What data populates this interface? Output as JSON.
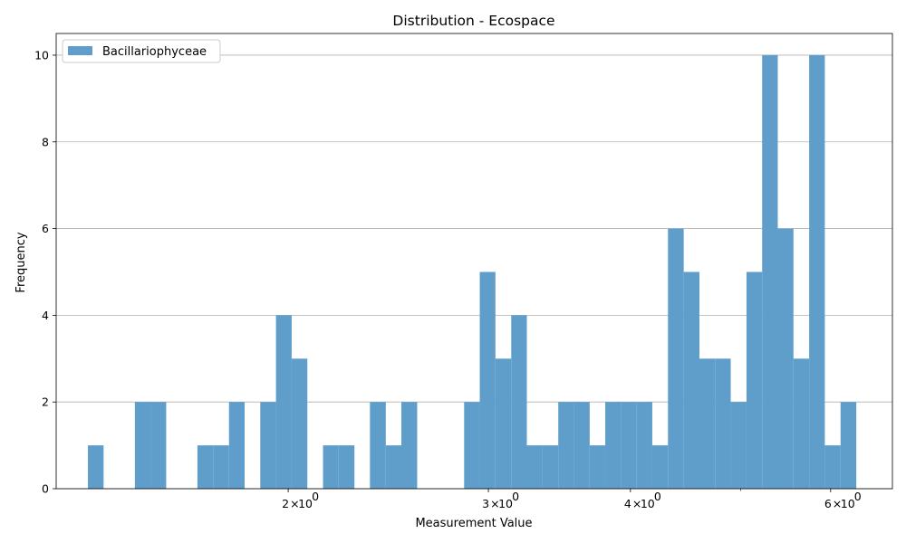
{
  "chart_data": {
    "type": "bar",
    "title": "Distribution - Ecospace",
    "xlabel": "Measurement Value",
    "ylabel": "Frequency",
    "x_scale": "log",
    "xlim": [
      1.25,
      6.8
    ],
    "ylim": [
      0,
      10.5
    ],
    "grid": "y",
    "legend_position": "upper left",
    "x_ticks": [
      {
        "value": 2,
        "base": "2",
        "exp": "0"
      },
      {
        "value": 3,
        "base": "3",
        "exp": "0"
      },
      {
        "value": 4,
        "base": "4",
        "exp": "0"
      },
      {
        "value": 6,
        "base": "6",
        "exp": "0"
      }
    ],
    "x_minor_ticks": [
      5
    ],
    "y_ticks": [
      0,
      2,
      4,
      6,
      8,
      10
    ],
    "series": [
      {
        "name": "Bacillariophyceae",
        "color": "#5f9ecb",
        "bin_edges": [
          1.333,
          1.376,
          1.42,
          1.466,
          1.513,
          1.562,
          1.612,
          1.664,
          1.718,
          1.774,
          1.831,
          1.89,
          1.951,
          2.014,
          2.079,
          2.146,
          2.215,
          2.287,
          2.36,
          2.437,
          2.515,
          2.597,
          2.68,
          2.767,
          2.856,
          2.948,
          3.043,
          3.142,
          3.243,
          3.348,
          3.456,
          3.567,
          3.683,
          3.801,
          3.924,
          4.051,
          4.181,
          4.316,
          4.456,
          4.6,
          4.748,
          4.901,
          5.06,
          5.223,
          5.391,
          5.565,
          5.745,
          5.93,
          6.122
        ],
        "counts": [
          1,
          0,
          0,
          2,
          2,
          0,
          0,
          1,
          1,
          2,
          0,
          2,
          4,
          3,
          0,
          1,
          1,
          0,
          2,
          1,
          2,
          0,
          0,
          0,
          2,
          5,
          3,
          4,
          1,
          1,
          2,
          2,
          1,
          2,
          2,
          2,
          1,
          6,
          5,
          3,
          3,
          2,
          5,
          10,
          6,
          3,
          10,
          1,
          2
        ]
      }
    ]
  }
}
